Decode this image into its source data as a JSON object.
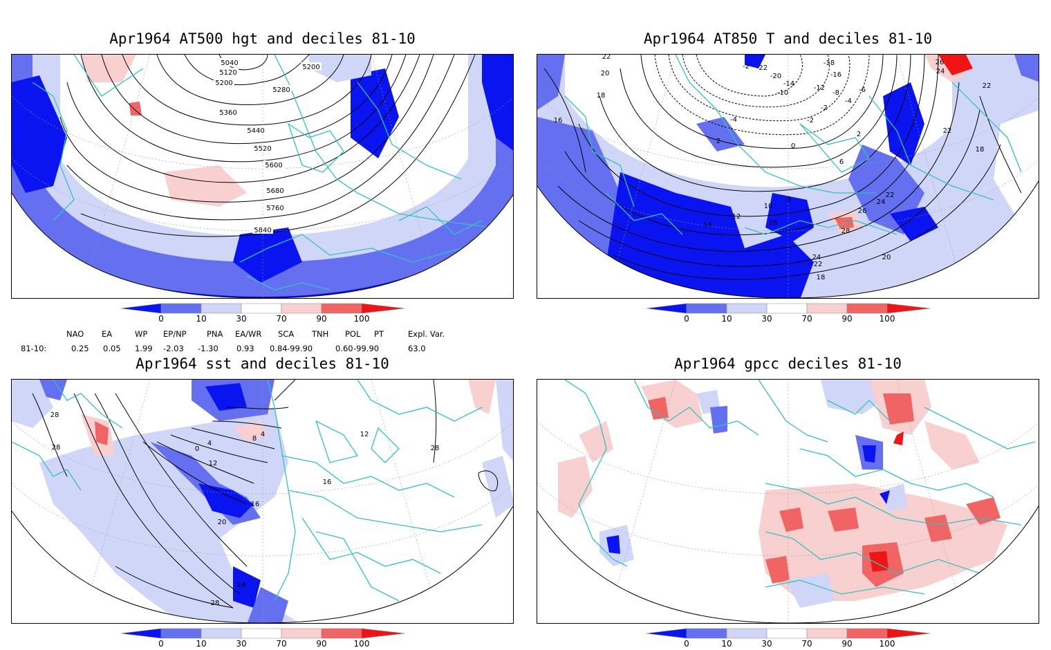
{
  "panels": [
    {
      "title": "Apr1964 AT500 hgt and deciles 81-10"
    },
    {
      "title": "Apr1964 AT850 T and deciles 81-10"
    },
    {
      "title": "Apr1964 sst and deciles 81-10"
    },
    {
      "title": "Apr1964 gpcc deciles 81-10"
    }
  ],
  "colorbar": {
    "labels": [
      "0",
      "10",
      "30",
      "70",
      "90",
      "100"
    ],
    "colors": [
      "#0a14f0",
      "#6470f0",
      "#d0d6f8",
      "#ffffff",
      "#f8d0d0",
      "#f06464",
      "#f01414"
    ]
  },
  "indices": {
    "headers": [
      "NAO",
      "EA",
      "WP",
      "EP/NP",
      "PNA",
      "EA/WR",
      "SCA",
      "TNH",
      "POL",
      "PT",
      "Expl. Var."
    ],
    "row_label": "81-10:",
    "values": [
      "0.25",
      "0.05",
      "1.99",
      "-2.03",
      "-1.30",
      "0.93",
      "0.84",
      "-99.90",
      "0.60",
      "-99.90",
      "63.0"
    ]
  },
  "contour_labels": {
    "hgt": [
      "5040",
      "5120",
      "5200",
      "5200",
      "5280",
      "5360",
      "5440",
      "5520",
      "5600",
      "5680",
      "5760",
      "5840"
    ],
    "t850": [
      "22",
      "20",
      "18",
      "16",
      "-2",
      "-22",
      "-20",
      "-18",
      "-16",
      "-14",
      "-12",
      "-10",
      "-8",
      "-6",
      "-4",
      "-2",
      "-4",
      "-2",
      "2",
      "2",
      "0",
      "6",
      "8",
      "10",
      "12",
      "14",
      "16",
      "18",
      "20",
      "22",
      "24",
      "26",
      "28",
      "24",
      "22",
      "26",
      "24",
      "22",
      "22",
      "18"
    ],
    "sst": [
      "28",
      "28",
      "0",
      "4",
      "4",
      "8",
      "12",
      "16",
      "16",
      "20",
      "24",
      "28",
      "28",
      "12"
    ]
  }
}
